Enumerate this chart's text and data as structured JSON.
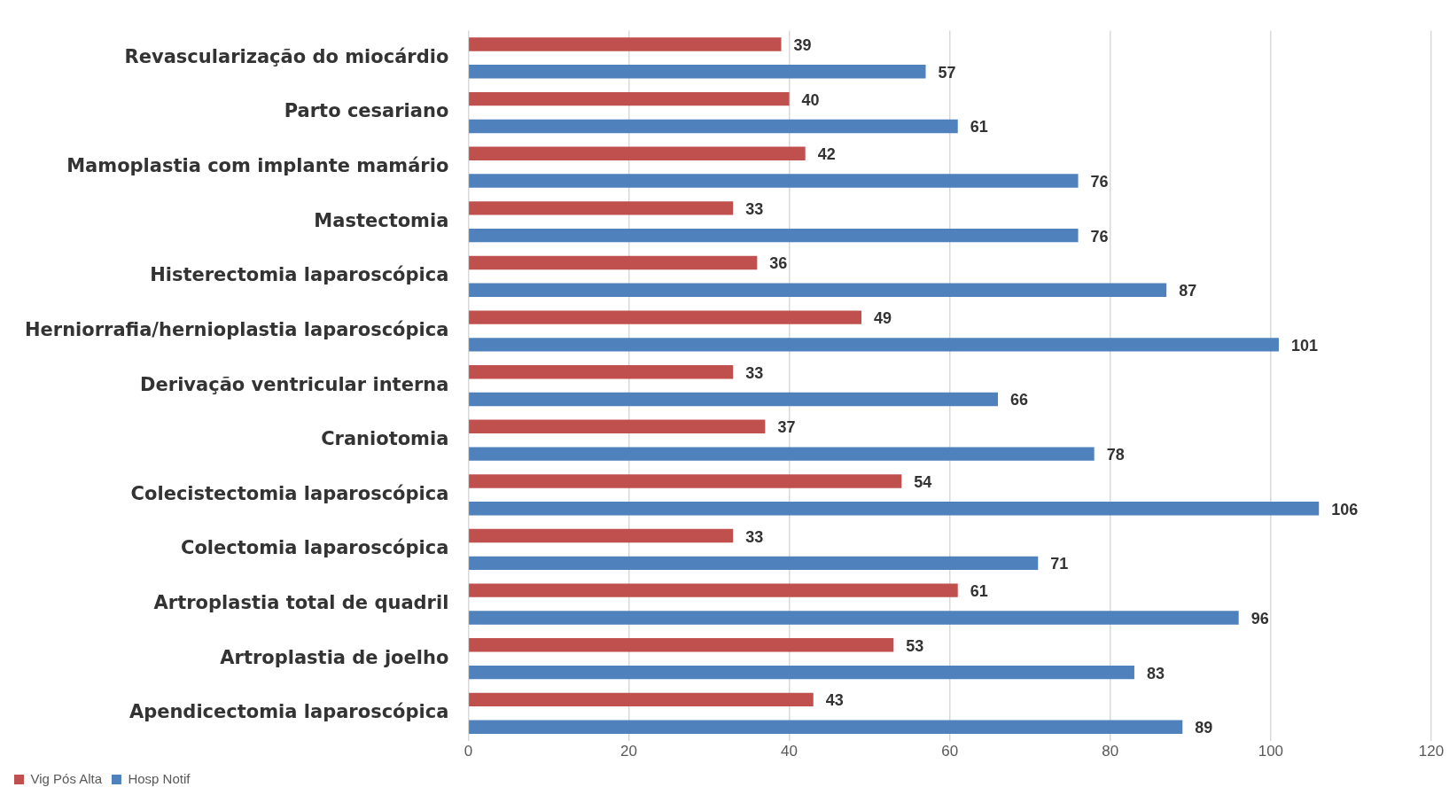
{
  "chart_data": {
    "type": "bar",
    "orientation": "horizontal",
    "categories": [
      "Revascularização do miocárdio",
      "Parto cesariano",
      "Mamoplastia com implante mamário",
      "Mastectomia",
      "Histerectomia laparoscópica",
      "Herniorrafia/hernioplastia laparoscópica",
      "Derivação ventricular interna",
      "Craniotomia",
      "Colecistectomia laparoscópica",
      "Colectomia laparoscópica",
      "Artroplastia total de quadril",
      "Artroplastia de joelho",
      "Apendicectomia laparoscópica"
    ],
    "series": [
      {
        "name": "Vig Pós Alta",
        "color": "#c0504d",
        "values": [
          39,
          40,
          42,
          33,
          36,
          49,
          33,
          37,
          54,
          33,
          61,
          53,
          43
        ]
      },
      {
        "name": "Hosp Notif",
        "color": "#4f81bd",
        "values": [
          57,
          61,
          76,
          76,
          87,
          101,
          66,
          78,
          106,
          71,
          96,
          83,
          89
        ]
      }
    ],
    "xlim": [
      0,
      120
    ],
    "xticks": [
      0,
      20,
      40,
      60,
      80,
      100,
      120
    ],
    "grid": "x",
    "legend": "bottom left",
    "data_labels": true
  }
}
